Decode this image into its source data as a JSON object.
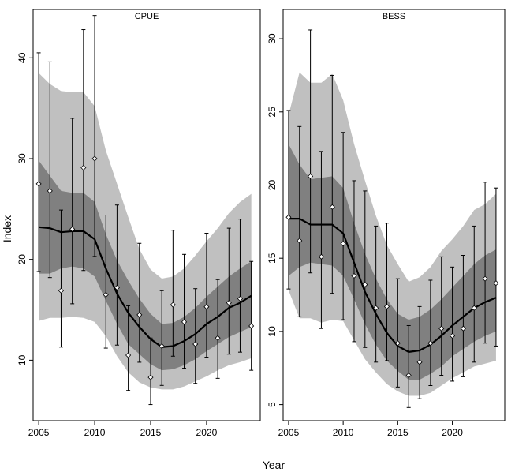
{
  "figure": {
    "xlabel": "Year",
    "ylabel": "Index",
    "colors": {
      "outer_band": "#c0c0c0",
      "inner_band": "#808080",
      "trend": "#000000",
      "points": "#ffffff",
      "frame": "#000000"
    }
  },
  "chart_data": [
    {
      "type": "line",
      "title": "CPUE",
      "xlim": [
        2004.5,
        2024.8
      ],
      "ylim": [
        4.0,
        44.8
      ],
      "xticks": [
        2005,
        2010,
        2015,
        2020
      ],
      "yticks": [
        10,
        20,
        30,
        40
      ],
      "years": [
        2005,
        2006,
        2007,
        2008,
        2009,
        2010,
        2011,
        2012,
        2013,
        2014,
        2015,
        2016,
        2017,
        2018,
        2019,
        2020,
        2021,
        2022,
        2023,
        2024
      ],
      "observed": [
        27.5,
        26.8,
        16.9,
        23.0,
        29.1,
        30.0,
        16.5,
        17.2,
        10.5,
        14.5,
        8.3,
        11.4,
        15.5,
        13.8,
        11.6,
        15.3,
        12.2,
        15.7,
        16.1,
        13.4
      ],
      "err_lower": [
        18.8,
        18.2,
        11.3,
        15.6,
        18.9,
        20.3,
        11.2,
        11.5,
        7.0,
        9.8,
        5.6,
        7.5,
        10.4,
        9.2,
        7.7,
        10.3,
        8.2,
        10.6,
        10.8,
        9.0
      ],
      "err_upper": [
        40.5,
        39.6,
        24.9,
        34.0,
        42.8,
        44.2,
        24.4,
        25.4,
        15.4,
        21.6,
        12.2,
        16.9,
        22.9,
        20.5,
        17.1,
        22.6,
        18.0,
        23.1,
        24.0,
        19.8
      ],
      "trend": [
        23.2,
        23.1,
        22.7,
        22.8,
        22.8,
        22.0,
        19.1,
        16.6,
        14.7,
        13.3,
        12.1,
        11.3,
        11.4,
        11.9,
        12.6,
        13.6,
        14.3,
        15.2,
        15.7,
        16.4
      ],
      "inner_lower": [
        18.6,
        18.6,
        19.1,
        19.3,
        19.1,
        18.3,
        15.9,
        13.6,
        11.6,
        10.6,
        9.6,
        9.0,
        9.1,
        9.5,
        10.1,
        10.9,
        11.6,
        12.3,
        12.8,
        13.3
      ],
      "inner_upper": [
        29.8,
        28.3,
        26.8,
        26.6,
        26.6,
        25.7,
        22.5,
        19.9,
        17.9,
        16.1,
        14.6,
        13.6,
        13.7,
        14.3,
        15.2,
        16.3,
        17.3,
        18.3,
        19.1,
        19.8
      ],
      "outer_lower": [
        13.9,
        14.2,
        14.2,
        14.3,
        14.2,
        13.8,
        12.4,
        10.4,
        8.8,
        7.8,
        7.3,
        7.1,
        7.1,
        7.4,
        7.9,
        8.4,
        9.0,
        9.5,
        9.8,
        10.2
      ],
      "outer_upper": [
        38.5,
        37.4,
        36.7,
        36.6,
        36.6,
        35.2,
        30.8,
        27.5,
        24.2,
        21.0,
        19.0,
        18.1,
        18.3,
        19.1,
        20.4,
        21.8,
        23.1,
        24.6,
        25.7,
        26.5
      ]
    },
    {
      "type": "line",
      "title": "BESS",
      "xlim": [
        2004.5,
        2024.8
      ],
      "ylim": [
        3.9,
        32.0
      ],
      "xticks": [
        2005,
        2010,
        2015,
        2020
      ],
      "yticks": [
        5,
        10,
        15,
        20,
        25,
        30
      ],
      "years": [
        2005,
        2006,
        2007,
        2008,
        2009,
        2010,
        2011,
        2012,
        2013,
        2014,
        2015,
        2016,
        2017,
        2018,
        2019,
        2020,
        2021,
        2022,
        2023,
        2024
      ],
      "observed": [
        17.8,
        16.2,
        20.6,
        15.1,
        18.5,
        16.0,
        13.8,
        13.2,
        11.6,
        11.7,
        9.2,
        7.0,
        7.9,
        9.2,
        10.2,
        9.7,
        10.2,
        11.6,
        13.6,
        13.3
      ],
      "err_lower": [
        12.9,
        11.0,
        14.0,
        10.2,
        12.6,
        10.8,
        9.3,
        8.9,
        7.9,
        8.0,
        6.2,
        4.8,
        5.4,
        6.3,
        7.0,
        6.6,
        6.9,
        7.9,
        9.2,
        9.0
      ],
      "err_upper": [
        25.1,
        24.0,
        30.6,
        22.3,
        27.5,
        23.6,
        20.3,
        19.6,
        17.2,
        17.4,
        13.6,
        10.4,
        11.7,
        13.5,
        15.1,
        14.4,
        15.2,
        17.2,
        20.2,
        19.8
      ],
      "trend": [
        17.7,
        17.7,
        17.3,
        17.3,
        17.3,
        16.7,
        14.7,
        12.7,
        11.2,
        9.9,
        9.0,
        8.6,
        8.7,
        9.1,
        9.7,
        10.4,
        11.0,
        11.6,
        12.0,
        12.3
      ],
      "inner_lower": [
        13.8,
        14.4,
        14.7,
        14.6,
        14.5,
        13.8,
        12.2,
        10.5,
        9.1,
        8.0,
        7.3,
        6.7,
        6.7,
        7.1,
        7.6,
        8.3,
        8.8,
        9.3,
        9.7,
        10.0
      ],
      "inner_upper": [
        22.8,
        21.4,
        20.4,
        20.5,
        20.6,
        19.8,
        17.4,
        15.3,
        13.6,
        12.2,
        11.2,
        10.8,
        11.0,
        11.5,
        12.2,
        13.0,
        13.8,
        14.6,
        15.2,
        15.6
      ],
      "outer_lower": [
        12.8,
        10.9,
        10.9,
        10.6,
        10.8,
        10.7,
        9.4,
        8.1,
        7.2,
        6.4,
        5.9,
        5.6,
        5.6,
        5.8,
        6.3,
        6.8,
        7.2,
        7.6,
        7.8,
        8.0
      ],
      "outer_upper": [
        24.8,
        27.7,
        27.0,
        27.0,
        27.6,
        25.8,
        22.8,
        20.3,
        17.9,
        15.9,
        14.6,
        13.4,
        13.7,
        14.4,
        15.5,
        16.3,
        17.2,
        18.3,
        18.7,
        19.4
      ]
    }
  ]
}
